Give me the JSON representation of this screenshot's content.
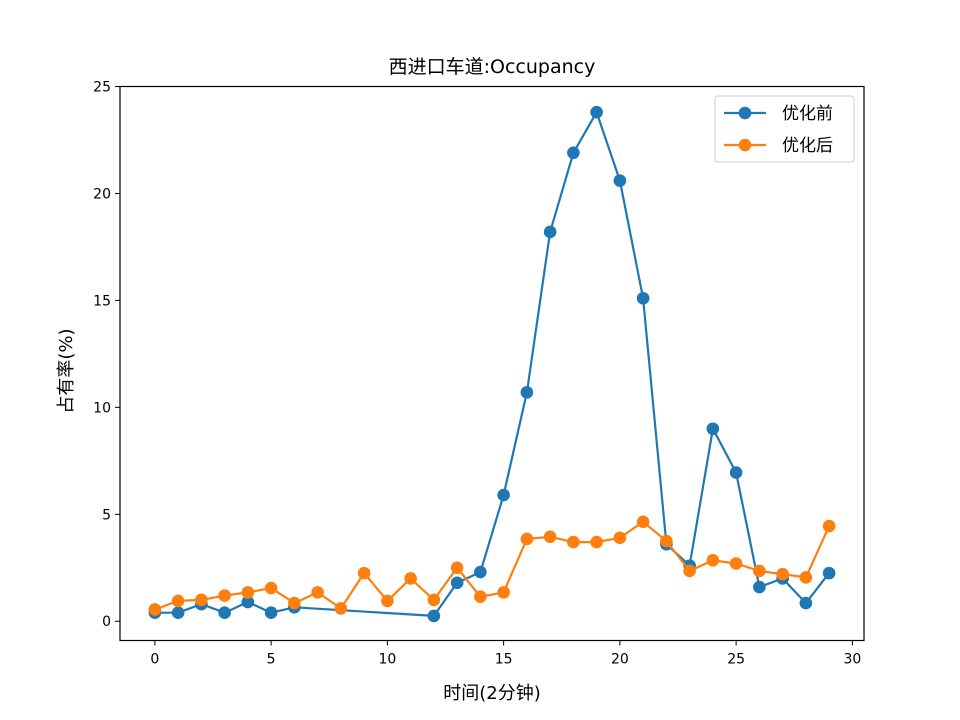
{
  "chart_data": {
    "type": "line",
    "title": "西进口车道:Occupancy",
    "xlabel": "时间(2分钟)",
    "ylabel": "占有率(%)",
    "xlim": [
      -1.5,
      30.5
    ],
    "ylim": [
      -0.9,
      25
    ],
    "xticks": [
      0,
      5,
      10,
      15,
      20,
      25,
      30
    ],
    "yticks": [
      0,
      5,
      10,
      15,
      20,
      25
    ],
    "grid": false,
    "legend_position": "top-right",
    "series": [
      {
        "name": "优化前",
        "color": "#1f77b4",
        "marker": "circle",
        "x": [
          0,
          1,
          2,
          3,
          4,
          5,
          6,
          12,
          13,
          14,
          15,
          16,
          17,
          18,
          19,
          20,
          21,
          22,
          23,
          24,
          25,
          26,
          27,
          28,
          29
        ],
        "y": [
          0.4,
          0.4,
          0.8,
          0.4,
          0.9,
          0.4,
          0.65,
          0.25,
          1.8,
          2.3,
          5.9,
          10.7,
          18.2,
          21.9,
          23.8,
          20.6,
          15.1,
          3.6,
          2.6,
          9.0,
          6.95,
          1.6,
          2.0,
          0.85,
          2.25
        ]
      },
      {
        "name": "优化后",
        "color": "#ff7f0e",
        "marker": "circle",
        "x": [
          0,
          1,
          2,
          3,
          4,
          5,
          6,
          7,
          8,
          9,
          10,
          11,
          12,
          13,
          14,
          15,
          16,
          17,
          18,
          19,
          20,
          21,
          22,
          23,
          24,
          25,
          26,
          27,
          28,
          29
        ],
        "y": [
          0.55,
          0.95,
          1.0,
          1.2,
          1.35,
          1.55,
          0.85,
          1.35,
          0.6,
          2.25,
          0.95,
          2.0,
          1.0,
          2.5,
          1.15,
          1.35,
          3.85,
          3.95,
          3.7,
          3.7,
          3.9,
          4.65,
          3.75,
          2.35,
          2.85,
          2.7,
          2.35,
          2.2,
          2.05,
          4.45
        ]
      }
    ]
  }
}
